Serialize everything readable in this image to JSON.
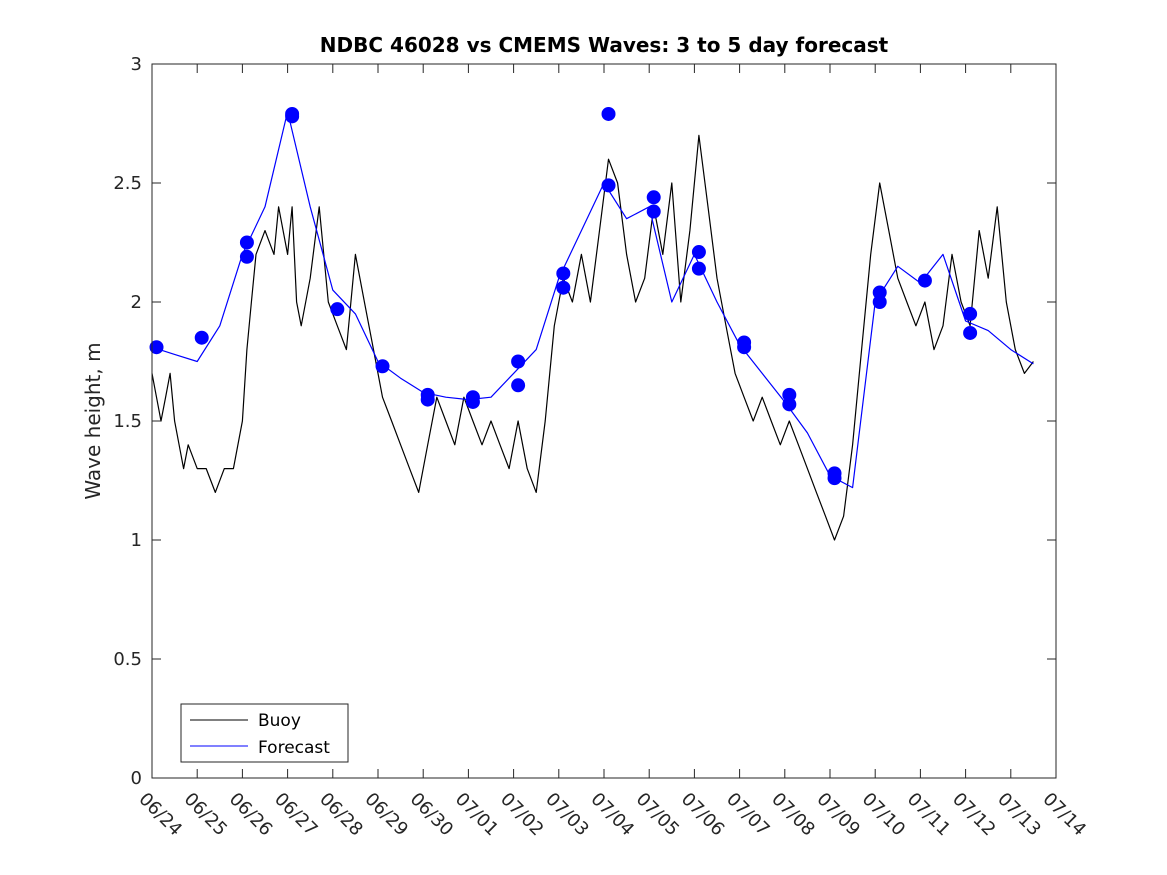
{
  "chart_data": {
    "type": "line",
    "title": "NDBC 46028 vs CMEMS Waves: 3 to 5 day forecast",
    "xlabel": "",
    "ylabel": "Wave height, m",
    "ylim": [
      0,
      3
    ],
    "yticks": [
      "0",
      "0.5",
      "1",
      "1.5",
      "2",
      "2.5",
      "3"
    ],
    "xlim": [
      "06/24",
      "07/14"
    ],
    "xticks": [
      "06/24",
      "06/25",
      "06/26",
      "06/27",
      "06/28",
      "06/29",
      "06/30",
      "07/01",
      "07/02",
      "07/03",
      "07/04",
      "07/05",
      "07/06",
      "07/07",
      "07/08",
      "07/09",
      "07/10",
      "07/11",
      "07/12",
      "07/13",
      "07/14"
    ],
    "grid": false,
    "legend": {
      "placement": "bottom-left",
      "entries": [
        {
          "name": "Buoy",
          "color": "#000000"
        },
        {
          "name": "Forecast",
          "color": "#0000ff"
        }
      ]
    },
    "series": [
      {
        "name": "Buoy",
        "color": "#000000",
        "x_days": [
          0.0,
          0.1,
          0.2,
          0.3,
          0.4,
          0.5,
          0.6,
          0.7,
          0.8,
          1.0,
          1.2,
          1.4,
          1.6,
          1.8,
          2.0,
          2.1,
          2.2,
          2.3,
          2.5,
          2.7,
          2.8,
          2.9,
          3.0,
          3.1,
          3.2,
          3.3,
          3.5,
          3.7,
          3.9,
          4.1,
          4.3,
          4.5,
          4.7,
          4.9,
          5.1,
          5.3,
          5.5,
          5.7,
          5.9,
          6.1,
          6.3,
          6.5,
          6.7,
          6.9,
          7.1,
          7.3,
          7.5,
          7.7,
          7.9,
          8.1,
          8.3,
          8.5,
          8.7,
          8.9,
          9.1,
          9.3,
          9.5,
          9.7,
          9.9,
          10.1,
          10.3,
          10.5,
          10.7,
          10.9,
          11.1,
          11.3,
          11.5,
          11.7,
          11.9,
          12.1,
          12.3,
          12.5,
          12.7,
          12.9,
          13.1,
          13.3,
          13.5,
          13.7,
          13.9,
          14.1,
          14.3,
          14.5,
          14.7,
          14.9,
          15.1,
          15.3,
          15.5,
          15.7,
          15.9,
          16.1,
          16.3,
          16.5,
          16.7,
          16.9,
          17.1,
          17.3,
          17.5,
          17.7,
          17.9,
          18.1,
          18.3,
          18.5,
          18.7,
          18.9,
          19.1,
          19.3,
          19.5
        ],
        "values": [
          1.7,
          1.6,
          1.5,
          1.6,
          1.7,
          1.5,
          1.4,
          1.3,
          1.4,
          1.3,
          1.3,
          1.2,
          1.3,
          1.3,
          1.5,
          1.8,
          2.0,
          2.2,
          2.3,
          2.2,
          2.4,
          2.3,
          2.2,
          2.4,
          2.0,
          1.9,
          2.1,
          2.4,
          2.0,
          1.9,
          1.8,
          2.2,
          2.0,
          1.8,
          1.6,
          1.5,
          1.4,
          1.3,
          1.2,
          1.4,
          1.6,
          1.5,
          1.4,
          1.6,
          1.5,
          1.4,
          1.5,
          1.4,
          1.3,
          1.5,
          1.3,
          1.2,
          1.5,
          1.9,
          2.1,
          2.0,
          2.2,
          2.0,
          2.3,
          2.6,
          2.5,
          2.2,
          2.0,
          2.1,
          2.4,
          2.2,
          2.5,
          2.0,
          2.3,
          2.7,
          2.4,
          2.1,
          1.9,
          1.7,
          1.6,
          1.5,
          1.6,
          1.5,
          1.4,
          1.5,
          1.4,
          1.3,
          1.2,
          1.1,
          1.0,
          1.1,
          1.4,
          1.8,
          2.2,
          2.5,
          2.3,
          2.1,
          2.0,
          1.9,
          2.0,
          1.8,
          1.9,
          2.2,
          2.0,
          1.9,
          2.3,
          2.1,
          2.4,
          2.0,
          1.8,
          1.7,
          1.75
        ]
      },
      {
        "name": "Forecast",
        "color": "#0000ff",
        "x_days": [
          0.0,
          0.5,
          1.0,
          1.5,
          2.0,
          2.5,
          3.0,
          3.5,
          4.0,
          4.5,
          5.0,
          5.5,
          6.0,
          6.5,
          7.0,
          7.5,
          8.0,
          8.5,
          9.0,
          9.5,
          10.0,
          10.5,
          11.0,
          11.5,
          12.0,
          12.5,
          13.0,
          13.5,
          14.0,
          14.5,
          15.0,
          15.5,
          16.0,
          16.5,
          17.0,
          17.5,
          18.0,
          18.5,
          19.0,
          19.5
        ],
        "values": [
          1.81,
          1.78,
          1.75,
          1.9,
          2.2,
          2.4,
          2.8,
          2.4,
          2.05,
          1.95,
          1.75,
          1.68,
          1.62,
          1.6,
          1.59,
          1.6,
          1.7,
          1.8,
          2.1,
          2.3,
          2.5,
          2.35,
          2.4,
          2.0,
          2.2,
          2.0,
          1.82,
          1.7,
          1.58,
          1.45,
          1.27,
          1.22,
          2.0,
          2.15,
          2.08,
          2.2,
          1.92,
          1.88,
          1.8,
          1.74
        ]
      }
    ],
    "forecast_markers": {
      "color": "#0000ff",
      "x_days": [
        0.1,
        1.1,
        2.1,
        2.1,
        3.1,
        3.1,
        4.1,
        5.1,
        6.1,
        6.1,
        7.1,
        7.1,
        8.1,
        8.1,
        9.1,
        9.1,
        10.1,
        10.1,
        11.1,
        11.1,
        12.1,
        12.1,
        13.1,
        13.1,
        14.1,
        14.1,
        15.1,
        15.1,
        16.1,
        16.1,
        17.1,
        18.1,
        18.1
      ],
      "values": [
        1.81,
        1.85,
        2.25,
        2.19,
        2.79,
        2.78,
        1.97,
        1.73,
        1.61,
        1.59,
        1.6,
        1.58,
        1.75,
        1.65,
        2.12,
        2.06,
        2.79,
        2.49,
        2.44,
        2.38,
        2.21,
        2.14,
        1.83,
        1.81,
        1.61,
        1.57,
        1.28,
        1.26,
        2.04,
        2.0,
        2.09,
        1.95,
        1.87
      ]
    }
  }
}
